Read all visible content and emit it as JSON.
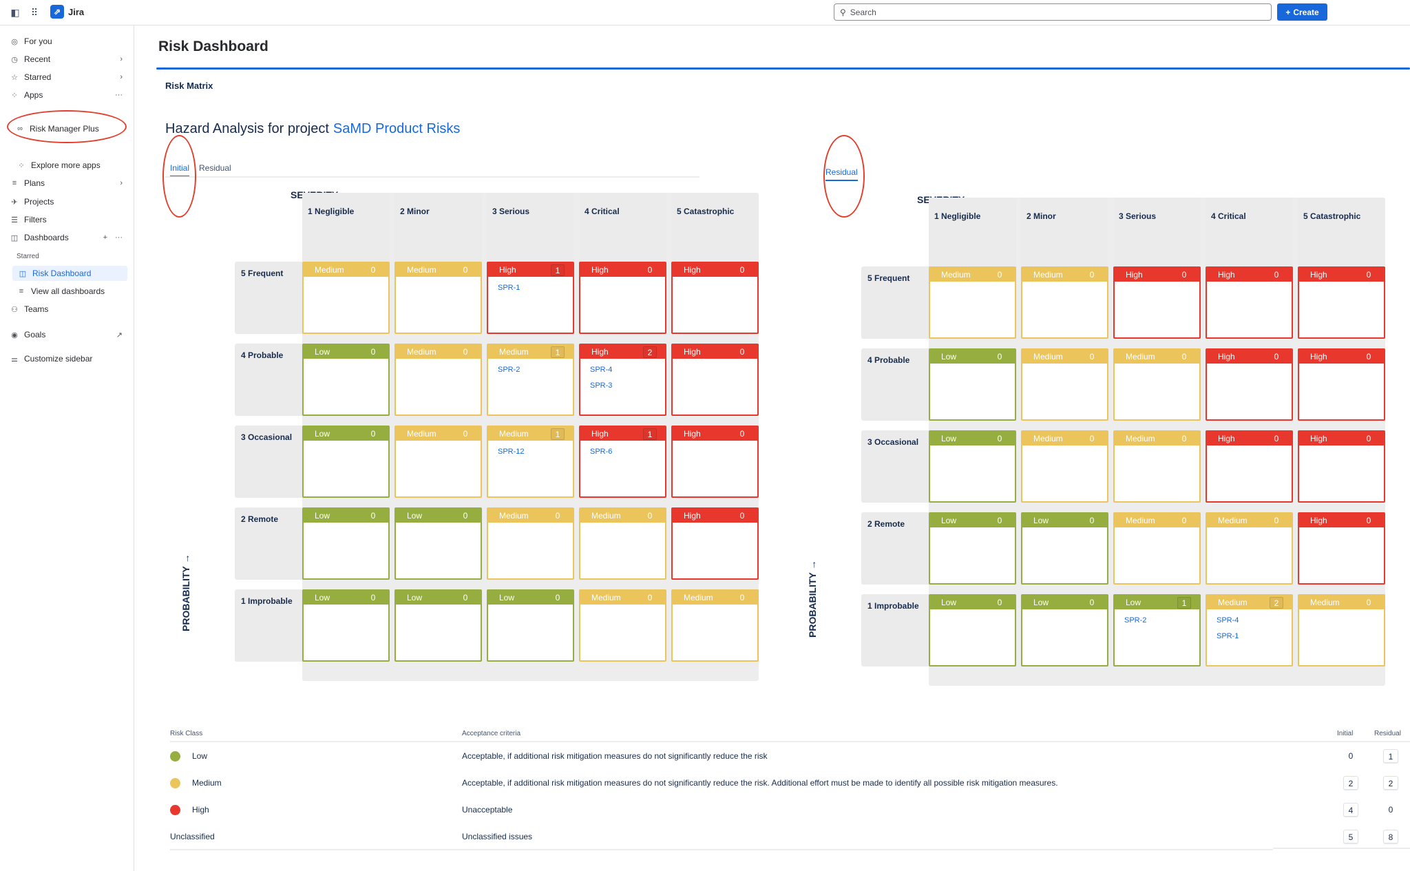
{
  "topbar": {
    "app_name": "Jira",
    "search_placeholder": "Search",
    "create_label": "Create"
  },
  "sidebar": {
    "items": [
      {
        "label": "For you",
        "icon": "user-circle-icon"
      },
      {
        "label": "Recent",
        "icon": "clock-icon"
      },
      {
        "label": "Starred",
        "icon": "star-icon"
      },
      {
        "label": "Apps",
        "icon": "apps-icon"
      },
      {
        "label": "Risk Manager Plus",
        "icon": "link-icon"
      },
      {
        "label": "Explore more apps",
        "icon": "apps-add-icon"
      },
      {
        "label": "Plans",
        "icon": "plans-icon"
      },
      {
        "label": "Projects",
        "icon": "rocket-icon"
      },
      {
        "label": "Filters",
        "icon": "filter-icon"
      },
      {
        "label": "Dashboards",
        "icon": "dashboard-icon"
      },
      {
        "label": "Starred"
      },
      {
        "label": "Risk Dashboard",
        "icon": "dashboard-icon"
      },
      {
        "label": "View all dashboards",
        "icon": "list-icon"
      },
      {
        "label": "Teams",
        "icon": "people-icon"
      },
      {
        "label": "Goals",
        "icon": "target-icon"
      },
      {
        "label": "Customize sidebar",
        "icon": "sliders-icon"
      }
    ]
  },
  "page": {
    "title": "Risk Dashboard",
    "gadget_title": "Risk Matrix",
    "heading_prefix": "Hazard Analysis for project",
    "project_name": "SaMD Product Risks"
  },
  "tabs": {
    "initial": "Initial",
    "residual": "Residual"
  },
  "axes": {
    "severity": "SEVERITY →",
    "probability": "PROBABILITY →"
  },
  "colors": {
    "Low": "#95ae3f",
    "Medium": "#ecc45c",
    "High": "#e8382e"
  },
  "severity_levels": [
    "1 Negligible",
    "2 Minor",
    "3 Serious",
    "4 Critical",
    "5 Catastrophic"
  ],
  "probability_levels": [
    "5 Frequent",
    "4 Probable",
    "3 Occasional",
    "2 Remote",
    "1 Improbable"
  ],
  "initial_matrix": [
    [
      {
        "level": "Medium",
        "count": "0",
        "issues": []
      },
      {
        "level": "Medium",
        "count": "0",
        "issues": []
      },
      {
        "level": "High",
        "count": "1",
        "issues": [
          "SPR-1"
        ]
      },
      {
        "level": "High",
        "count": "0",
        "issues": []
      },
      {
        "level": "High",
        "count": "0",
        "issues": []
      }
    ],
    [
      {
        "level": "Low",
        "count": "0",
        "issues": []
      },
      {
        "level": "Medium",
        "count": "0",
        "issues": []
      },
      {
        "level": "Medium",
        "count": "1",
        "issues": [
          "SPR-2"
        ]
      },
      {
        "level": "High",
        "count": "2",
        "issues": [
          "SPR-4",
          "SPR-3"
        ]
      },
      {
        "level": "High",
        "count": "0",
        "issues": []
      }
    ],
    [
      {
        "level": "Low",
        "count": "0",
        "issues": []
      },
      {
        "level": "Medium",
        "count": "0",
        "issues": []
      },
      {
        "level": "Medium",
        "count": "1",
        "issues": [
          "SPR-12"
        ]
      },
      {
        "level": "High",
        "count": "1",
        "issues": [
          "SPR-6"
        ]
      },
      {
        "level": "High",
        "count": "0",
        "issues": []
      }
    ],
    [
      {
        "level": "Low",
        "count": "0",
        "issues": []
      },
      {
        "level": "Low",
        "count": "0",
        "issues": []
      },
      {
        "level": "Medium",
        "count": "0",
        "issues": []
      },
      {
        "level": "Medium",
        "count": "0",
        "issues": []
      },
      {
        "level": "High",
        "count": "0",
        "issues": []
      }
    ],
    [
      {
        "level": "Low",
        "count": "0",
        "issues": []
      },
      {
        "level": "Low",
        "count": "0",
        "issues": []
      },
      {
        "level": "Low",
        "count": "0",
        "issues": []
      },
      {
        "level": "Medium",
        "count": "0",
        "issues": []
      },
      {
        "level": "Medium",
        "count": "0",
        "issues": []
      }
    ]
  ],
  "residual_matrix": [
    [
      {
        "level": "Medium",
        "count": "0",
        "issues": []
      },
      {
        "level": "Medium",
        "count": "0",
        "issues": []
      },
      {
        "level": "High",
        "count": "0",
        "issues": []
      },
      {
        "level": "High",
        "count": "0",
        "issues": []
      },
      {
        "level": "High",
        "count": "0",
        "issues": []
      }
    ],
    [
      {
        "level": "Low",
        "count": "0",
        "issues": []
      },
      {
        "level": "Medium",
        "count": "0",
        "issues": []
      },
      {
        "level": "Medium",
        "count": "0",
        "issues": []
      },
      {
        "level": "High",
        "count": "0",
        "issues": []
      },
      {
        "level": "High",
        "count": "0",
        "issues": []
      }
    ],
    [
      {
        "level": "Low",
        "count": "0",
        "issues": []
      },
      {
        "level": "Medium",
        "count": "0",
        "issues": []
      },
      {
        "level": "Medium",
        "count": "0",
        "issues": []
      },
      {
        "level": "High",
        "count": "0",
        "issues": []
      },
      {
        "level": "High",
        "count": "0",
        "issues": []
      }
    ],
    [
      {
        "level": "Low",
        "count": "0",
        "issues": []
      },
      {
        "level": "Low",
        "count": "0",
        "issues": []
      },
      {
        "level": "Medium",
        "count": "0",
        "issues": []
      },
      {
        "level": "Medium",
        "count": "0",
        "issues": []
      },
      {
        "level": "High",
        "count": "0",
        "issues": []
      }
    ],
    [
      {
        "level": "Low",
        "count": "0",
        "issues": []
      },
      {
        "level": "Low",
        "count": "0",
        "issues": []
      },
      {
        "level": "Low",
        "count": "1",
        "issues": [
          "SPR-2"
        ]
      },
      {
        "level": "Medium",
        "count": "2",
        "issues": [
          "SPR-4",
          "SPR-1"
        ]
      },
      {
        "level": "Medium",
        "count": "0",
        "issues": []
      }
    ]
  ],
  "legend": {
    "headers": {
      "risk_class": "Risk Class",
      "criteria": "Acceptance criteria",
      "initial": "Initial",
      "residual": "Residual"
    },
    "rows": [
      {
        "class": "Low",
        "criteria": "Acceptable, if additional risk mitigation measures do not significantly reduce the risk",
        "initial": "0",
        "residual": "1"
      },
      {
        "class": "Medium",
        "criteria": "Acceptable, if additional risk mitigation measures do not significantly reduce the risk. Additional effort must be made to identify all possible risk mitigation measures.",
        "initial": "2",
        "residual": "2"
      },
      {
        "class": "High",
        "criteria": "Unacceptable",
        "initial": "4",
        "residual": "0"
      },
      {
        "class": "Unclassified",
        "criteria": "Unclassified issues",
        "initial": "5",
        "residual": "8"
      }
    ]
  }
}
